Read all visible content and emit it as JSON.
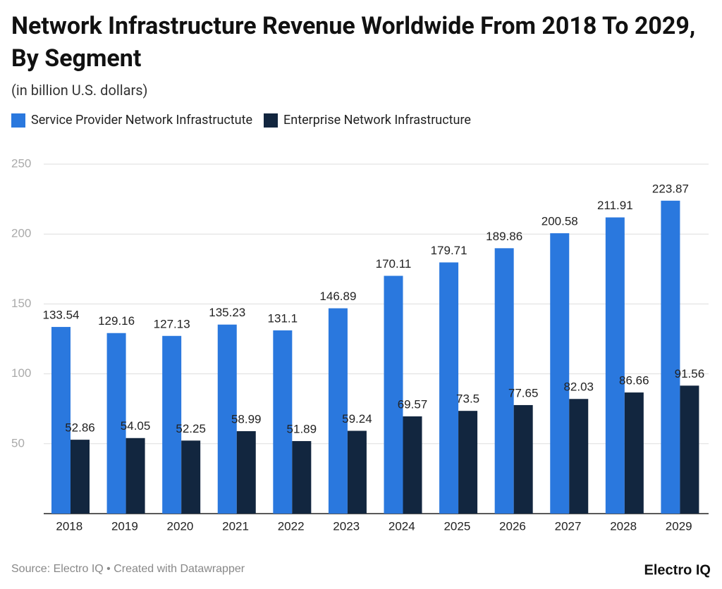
{
  "chart_data": {
    "type": "bar",
    "title": "Network Infrastructure Revenue Worldwide From 2018 To 2029, By Segment",
    "subtitle": "(in billion U.S. dollars)",
    "categories": [
      "2018",
      "2019",
      "2020",
      "2021",
      "2022",
      "2023",
      "2024",
      "2025",
      "2026",
      "2027",
      "2028",
      "2029"
    ],
    "series": [
      {
        "name": "Service Provider Network Infrastructute",
        "color": "#2a78de",
        "values": [
          133.54,
          129.16,
          127.13,
          135.23,
          131.1,
          146.89,
          170.11,
          179.71,
          189.86,
          200.58,
          211.91,
          223.87
        ]
      },
      {
        "name": "Enterprise Network Infrastructure",
        "color": "#12263f",
        "values": [
          52.86,
          54.05,
          52.25,
          58.99,
          51.89,
          59.24,
          69.57,
          73.5,
          77.65,
          82.03,
          86.66,
          91.56
        ]
      }
    ],
    "ylim": [
      0,
      250
    ],
    "yticks": [
      50,
      100,
      150,
      200,
      250
    ],
    "grid": true,
    "source": "Source: Electro IQ • Created with Datawrapper",
    "logo": "Electro IQ"
  }
}
